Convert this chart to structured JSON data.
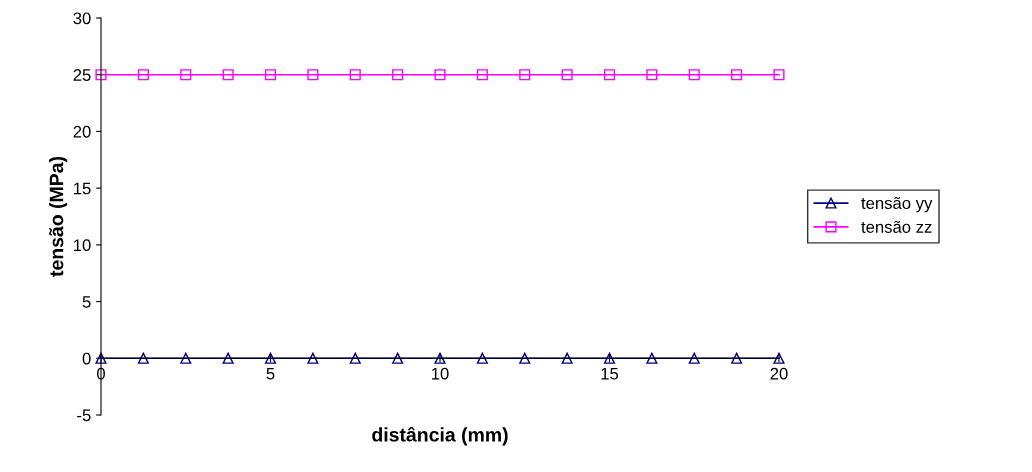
{
  "chart_data": {
    "type": "line",
    "xlabel": "distância (mm)",
    "ylabel": "tensão (MPa)",
    "x": [
      0,
      1.25,
      2.5,
      3.75,
      5,
      6.25,
      7.5,
      8.75,
      10,
      11.25,
      12.5,
      13.75,
      15,
      16.25,
      17.5,
      18.75,
      20
    ],
    "series": [
      {
        "name": "tensão yy",
        "color": "#000080",
        "marker": "triangle",
        "values": [
          0,
          0,
          0,
          0,
          0,
          0,
          0,
          0,
          0,
          0,
          0,
          0,
          0,
          0,
          0,
          0,
          0
        ]
      },
      {
        "name": "tensão zz",
        "color": "#ff00ff",
        "marker": "square",
        "values": [
          25,
          25,
          25,
          25,
          25,
          25,
          25,
          25,
          25,
          25,
          25,
          25,
          25,
          25,
          25,
          25,
          25
        ]
      }
    ],
    "xlim": [
      0,
      20
    ],
    "xticks": [
      0,
      5,
      10,
      15,
      20
    ],
    "ylim": [
      -5,
      30
    ],
    "yticks": [
      -5,
      0,
      5,
      10,
      15,
      20,
      25,
      30
    ],
    "grid": false,
    "legend": "right"
  }
}
